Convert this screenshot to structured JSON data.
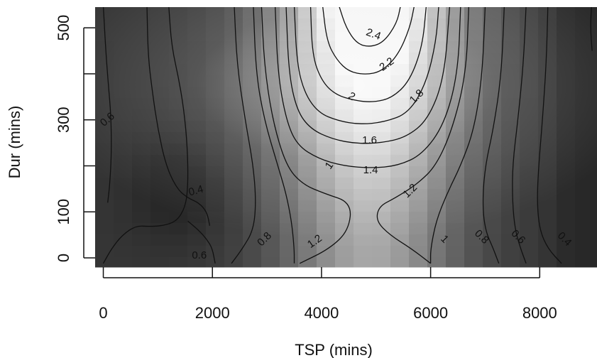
{
  "chart_data": {
    "type": "heatmap",
    "subtype": "contour",
    "xlabel": "TSP (mins)",
    "ylabel": "Dur (mins)",
    "xlim": [
      -150,
      9050
    ],
    "ylim": [
      -20,
      545
    ],
    "x_ticks": [
      0,
      2000,
      4000,
      6000,
      8000
    ],
    "x_tick_labels": [
      "0",
      "2000",
      "4000",
      "6000",
      "8000"
    ],
    "y_ticks": [
      0,
      100,
      200,
      300,
      400,
      500
    ],
    "y_tick_labels": [
      "0",
      "100",
      "",
      "300",
      "",
      "500"
    ],
    "colormap": "grayscale (dark = low, light = high)",
    "grid": false,
    "contour_levels": [
      0.4,
      0.6,
      0.8,
      1,
      1.2,
      1.4,
      1.6,
      1.8,
      2,
      2.2,
      2.4
    ],
    "contour_labels": [
      {
        "text": "2.4",
        "x": 4950,
        "y": 485,
        "angle": 20
      },
      {
        "text": "2.2",
        "x": 5200,
        "y": 420,
        "angle": -35
      },
      {
        "text": "2",
        "x": 4550,
        "y": 350,
        "angle": 30
      },
      {
        "text": "1.8",
        "x": 5750,
        "y": 350,
        "angle": -45
      },
      {
        "text": "1.6",
        "x": 4880,
        "y": 255,
        "angle": 0
      },
      {
        "text": "1.4",
        "x": 4900,
        "y": 190,
        "angle": 0
      },
      {
        "text": "1.2",
        "x": 5630,
        "y": 145,
        "angle": -45
      },
      {
        "text": "1",
        "x": 4150,
        "y": 200,
        "angle": -55
      },
      {
        "text": "0.6",
        "x": 80,
        "y": 300,
        "angle": -40
      },
      {
        "text": "0.4",
        "x": 1700,
        "y": 145,
        "angle": -15
      },
      {
        "text": "0.6",
        "x": 1760,
        "y": 5,
        "angle": 0
      },
      {
        "text": "0.8",
        "x": 2960,
        "y": 40,
        "angle": -45
      },
      {
        "text": "1.2",
        "x": 3880,
        "y": 35,
        "angle": -35
      },
      {
        "text": "1",
        "x": 6250,
        "y": 40,
        "angle": 45
      },
      {
        "text": "0.8",
        "x": 6930,
        "y": 45,
        "angle": 45
      },
      {
        "text": "0.6",
        "x": 7600,
        "y": 45,
        "angle": 45
      },
      {
        "text": "0.4",
        "x": 8450,
        "y": 40,
        "angle": 45
      }
    ],
    "contours": [
      {
        "level": 2.4,
        "points": [
          [
            4320,
            548
          ],
          [
            4450,
            500
          ],
          [
            4650,
            465
          ],
          [
            4900,
            458
          ],
          [
            5150,
            470
          ],
          [
            5380,
            510
          ],
          [
            5450,
            548
          ]
        ]
      },
      {
        "level": 2.2,
        "points": [
          [
            4020,
            548
          ],
          [
            4100,
            470
          ],
          [
            4280,
            430
          ],
          [
            4500,
            405
          ],
          [
            4800,
            398
          ],
          [
            5100,
            405
          ],
          [
            5400,
            440
          ],
          [
            5620,
            500
          ],
          [
            5700,
            548
          ]
        ]
      },
      {
        "level": 2,
        "points": [
          [
            3800,
            548
          ],
          [
            3830,
            440
          ],
          [
            4000,
            385
          ],
          [
            4250,
            355
          ],
          [
            4600,
            342
          ],
          [
            4950,
            338
          ],
          [
            5300,
            348
          ],
          [
            5620,
            385
          ],
          [
            5850,
            460
          ],
          [
            5920,
            548
          ]
        ]
      },
      {
        "level": 1.8,
        "points": [
          [
            3500,
            548
          ],
          [
            3550,
            420
          ],
          [
            3700,
            355
          ],
          [
            3950,
            315
          ],
          [
            4300,
            298
          ],
          [
            4700,
            290
          ],
          [
            5150,
            295
          ],
          [
            5600,
            315
          ],
          [
            5920,
            380
          ],
          [
            6100,
            470
          ],
          [
            6150,
            548
          ]
        ]
      },
      {
        "level": 1.6,
        "points": [
          [
            3350,
            548
          ],
          [
            3400,
            400
          ],
          [
            3550,
            320
          ],
          [
            3800,
            280
          ],
          [
            4200,
            258
          ],
          [
            4650,
            248
          ],
          [
            5100,
            250
          ],
          [
            5550,
            262
          ],
          [
            5950,
            300
          ],
          [
            6250,
            390
          ],
          [
            6350,
            548
          ]
        ]
      },
      {
        "level": 1.4,
        "points": [
          [
            3150,
            548
          ],
          [
            3200,
            400
          ],
          [
            3350,
            300
          ],
          [
            3550,
            245
          ],
          [
            3950,
            215
          ],
          [
            4400,
            200
          ],
          [
            4900,
            195
          ],
          [
            5400,
            200
          ],
          [
            5850,
            225
          ],
          [
            6250,
            290
          ],
          [
            6500,
            400
          ],
          [
            6550,
            548
          ]
        ]
      },
      {
        "level": 1.2,
        "points": [
          [
            2900,
            548
          ],
          [
            2950,
            420
          ],
          [
            3100,
            300
          ],
          [
            3350,
            200
          ],
          [
            3650,
            160
          ],
          [
            4050,
            140
          ],
          [
            4550,
            120
          ],
          [
            4500,
            60
          ],
          [
            4150,
            20
          ],
          [
            3600,
            -12
          ]
        ]
      },
      {
        "level": 1.2,
        "points": [
          [
            6700,
            548
          ],
          [
            6650,
            400
          ],
          [
            6400,
            280
          ],
          [
            6100,
            200
          ],
          [
            5750,
            160
          ],
          [
            5350,
            130
          ],
          [
            5050,
            112
          ],
          [
            5000,
            80
          ],
          [
            5250,
            50
          ],
          [
            5650,
            20
          ],
          [
            6000,
            -12
          ]
        ]
      },
      {
        "level": 1,
        "points": [
          [
            2750,
            548
          ],
          [
            2800,
            400
          ],
          [
            2950,
            300
          ],
          [
            3200,
            200
          ],
          [
            3350,
            140
          ],
          [
            3450,
            80
          ],
          [
            3500,
            20
          ],
          [
            3500,
            -12
          ]
        ]
      },
      {
        "level": 1,
        "points": [
          [
            7000,
            548
          ],
          [
            6950,
            400
          ],
          [
            6800,
            280
          ],
          [
            6550,
            200
          ],
          [
            6300,
            140
          ],
          [
            6100,
            80
          ],
          [
            6000,
            20
          ],
          [
            6000,
            -12
          ]
        ]
      },
      {
        "level": 0.8,
        "points": [
          [
            2400,
            548
          ],
          [
            2450,
            420
          ],
          [
            2600,
            300
          ],
          [
            2750,
            200
          ],
          [
            2800,
            120
          ],
          [
            2750,
            60
          ],
          [
            2550,
            20
          ],
          [
            2350,
            -12
          ]
        ]
      },
      {
        "level": 0.8,
        "points": [
          [
            7350,
            548
          ],
          [
            7300,
            400
          ],
          [
            7150,
            280
          ],
          [
            7000,
            200
          ],
          [
            6950,
            120
          ],
          [
            7000,
            60
          ],
          [
            7150,
            20
          ],
          [
            7250,
            -12
          ]
        ]
      },
      {
        "level": 0.6,
        "points": [
          [
            0,
            548
          ],
          [
            40,
            460
          ],
          [
            90,
            380
          ],
          [
            140,
            310
          ],
          [
            150,
            230
          ],
          [
            120,
            160
          ],
          [
            80,
            120
          ]
        ]
      },
      {
        "level": 0.6,
        "points": [
          [
            1200,
            548
          ],
          [
            1250,
            460
          ],
          [
            1400,
            380
          ],
          [
            1500,
            300
          ],
          [
            1550,
            220
          ],
          [
            1550,
            150
          ],
          [
            1500,
            110
          ],
          [
            1350,
            80
          ],
          [
            1100,
            70
          ],
          [
            850,
            68
          ],
          [
            600,
            70
          ],
          [
            350,
            50
          ],
          [
            150,
            20
          ],
          [
            0,
            -12
          ]
        ]
      },
      {
        "level": 0.6,
        "points": [
          [
            1550,
            80
          ],
          [
            1750,
            60
          ],
          [
            1900,
            40
          ],
          [
            2000,
            20
          ],
          [
            2050,
            -12
          ]
        ]
      },
      {
        "level": 0.6,
        "points": [
          [
            7750,
            548
          ],
          [
            7700,
            420
          ],
          [
            7600,
            300
          ],
          [
            7500,
            200
          ],
          [
            7500,
            120
          ],
          [
            7550,
            60
          ],
          [
            7650,
            20
          ],
          [
            7750,
            -12
          ]
        ]
      },
      {
        "level": 0.4,
        "points": [
          [
            800,
            548
          ],
          [
            820,
            440
          ],
          [
            900,
            360
          ],
          [
            1000,
            280
          ],
          [
            1150,
            200
          ],
          [
            1350,
            150
          ],
          [
            1550,
            130
          ],
          [
            1750,
            120
          ],
          [
            1900,
            100
          ],
          [
            1950,
            70
          ]
        ]
      },
      {
        "level": 0.4,
        "points": [
          [
            8150,
            548
          ],
          [
            8120,
            420
          ],
          [
            8050,
            300
          ],
          [
            7980,
            200
          ],
          [
            7950,
            120
          ],
          [
            8000,
            60
          ],
          [
            8150,
            20
          ],
          [
            8400,
            -12
          ]
        ]
      },
      {
        "level": 0.4,
        "points": [
          [
            8950,
            548
          ],
          [
            8930,
            500
          ],
          [
            8960,
            450
          ]
        ]
      }
    ]
  }
}
